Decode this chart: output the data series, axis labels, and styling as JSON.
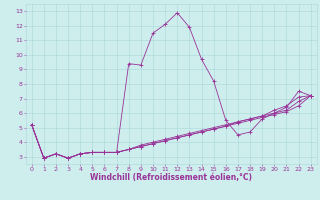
{
  "xlabel": "Windchill (Refroidissement éolien,°C)",
  "ylabel": "",
  "background_color": "#ceeeed",
  "grid_color": "#aad8d8",
  "line_color": "#993399",
  "xlim": [
    -0.5,
    23.5
  ],
  "ylim": [
    2.5,
    13.5
  ],
  "xticks": [
    0,
    1,
    2,
    3,
    4,
    5,
    6,
    7,
    8,
    9,
    10,
    11,
    12,
    13,
    14,
    15,
    16,
    17,
    18,
    19,
    20,
    21,
    22,
    23
  ],
  "yticks": [
    3,
    4,
    5,
    6,
    7,
    8,
    9,
    10,
    11,
    12,
    13
  ],
  "lines": [
    [
      5.2,
      2.9,
      3.2,
      2.9,
      3.2,
      3.3,
      3.3,
      3.3,
      9.4,
      9.3,
      11.5,
      12.1,
      12.9,
      11.9,
      9.7,
      8.2,
      5.5,
      4.5,
      4.7,
      5.6,
      6.0,
      6.4,
      7.5,
      7.2
    ],
    [
      5.2,
      2.9,
      3.2,
      2.9,
      3.2,
      3.3,
      3.3,
      3.3,
      3.5,
      3.8,
      4.0,
      4.2,
      4.4,
      4.6,
      4.8,
      5.0,
      5.2,
      5.4,
      5.6,
      5.8,
      6.2,
      6.5,
      7.1,
      7.2
    ],
    [
      5.2,
      2.9,
      3.2,
      2.9,
      3.2,
      3.3,
      3.3,
      3.3,
      3.5,
      3.7,
      3.9,
      4.1,
      4.3,
      4.5,
      4.7,
      4.9,
      5.1,
      5.4,
      5.6,
      5.8,
      6.0,
      6.2,
      6.8,
      7.2
    ],
    [
      5.2,
      2.9,
      3.2,
      2.9,
      3.2,
      3.3,
      3.3,
      3.3,
      3.5,
      3.7,
      3.9,
      4.1,
      4.3,
      4.5,
      4.7,
      4.9,
      5.1,
      5.3,
      5.5,
      5.7,
      5.9,
      6.1,
      6.5,
      7.2
    ]
  ],
  "font_color": "#993399",
  "marker": "+",
  "markersize": 3,
  "linewidth": 0.6,
  "tick_fontsize": 4.5,
  "xlabel_fontsize": 5.5
}
